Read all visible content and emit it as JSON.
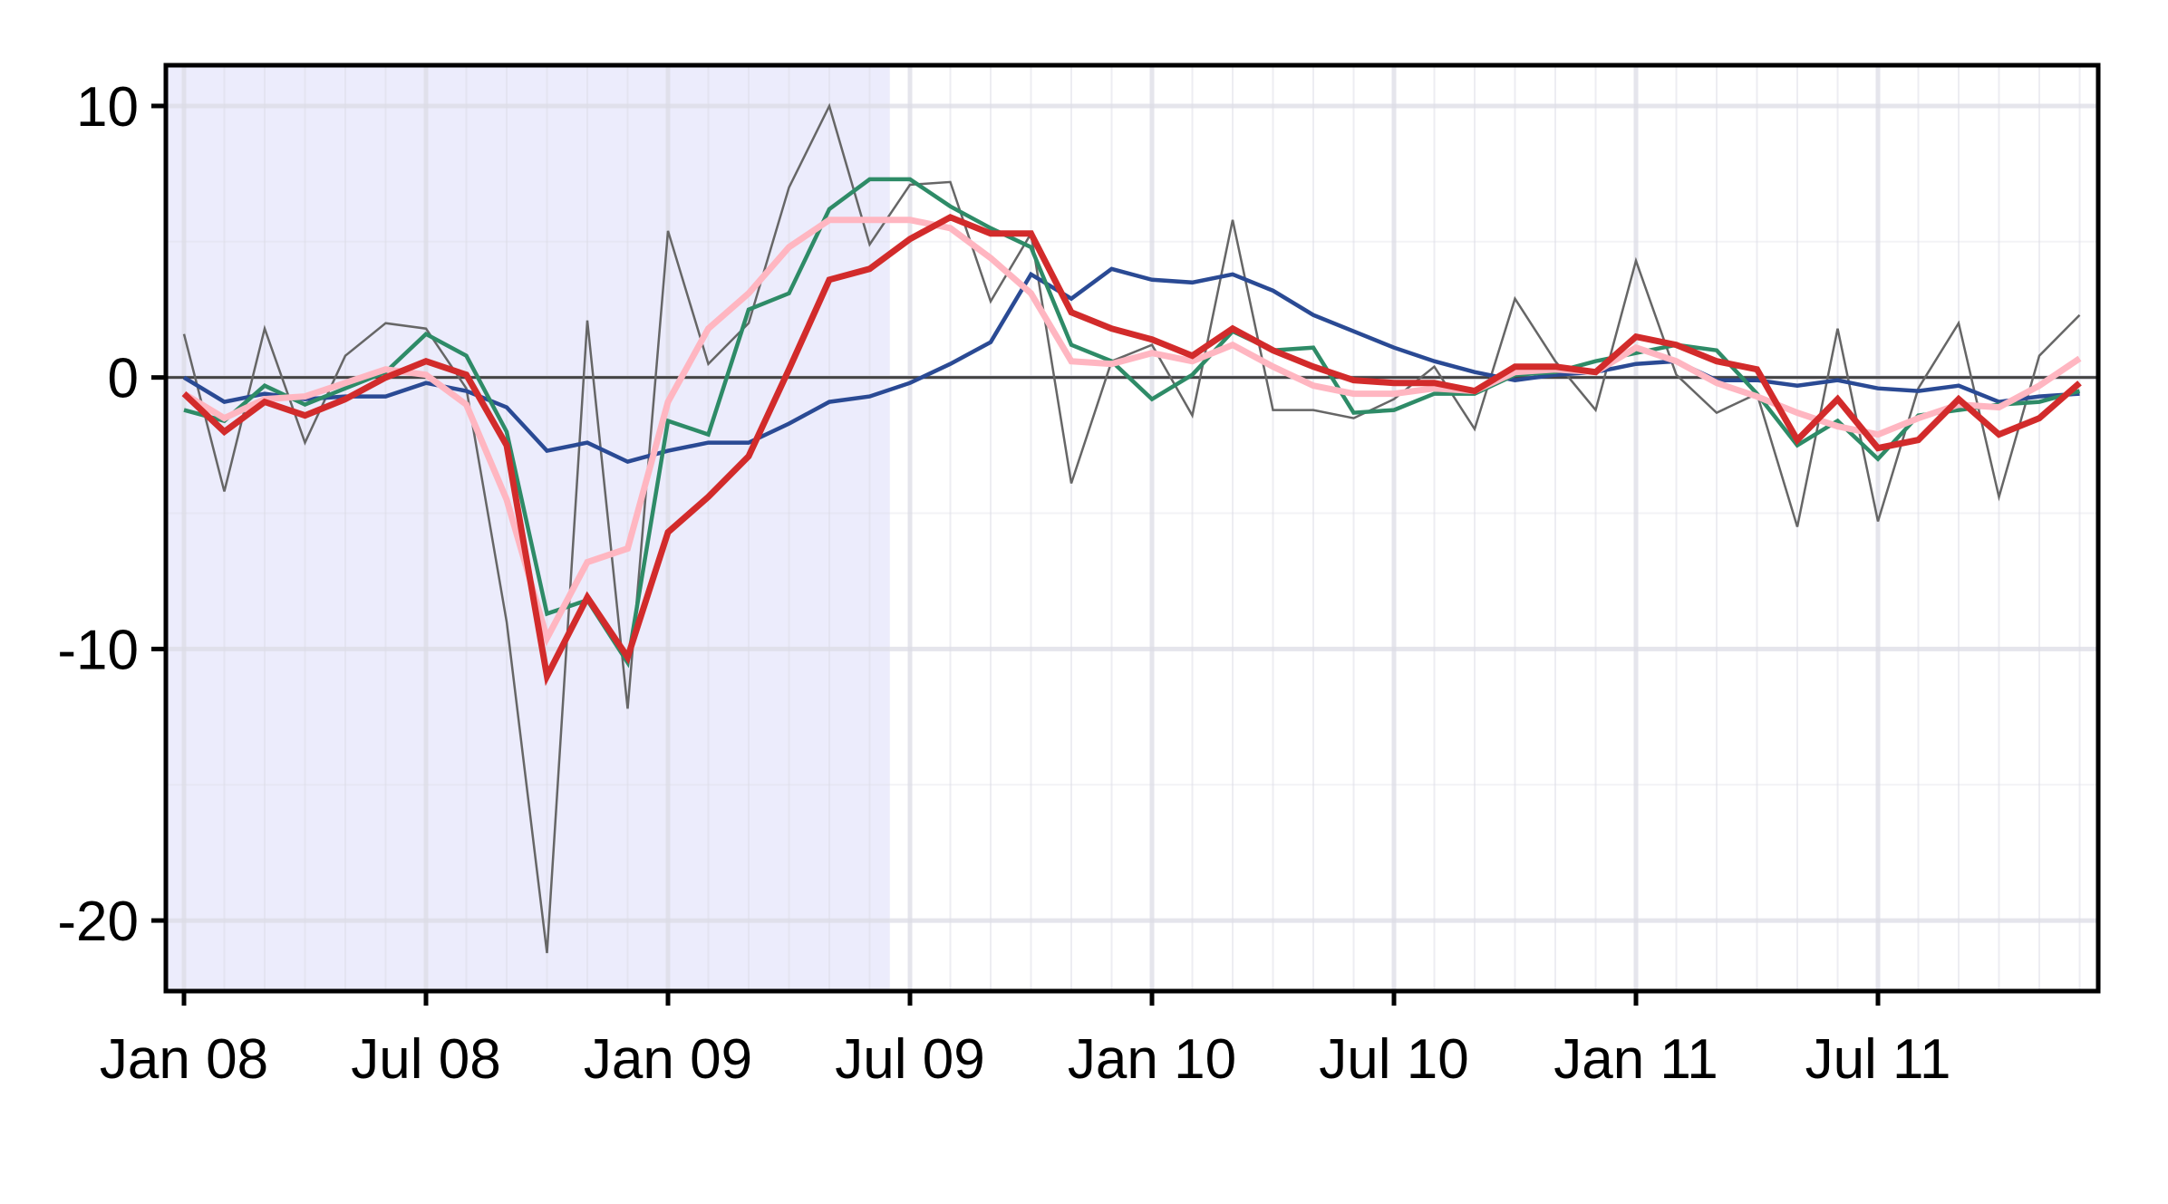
{
  "chart_data": {
    "type": "line",
    "title": "",
    "xlabel": "",
    "ylabel": "",
    "x_ticks": [
      "Jan 08",
      "Jul 08",
      "Jan 09",
      "Jul 09",
      "Jan 10",
      "Jul 10",
      "Jan 11",
      "Jul 11"
    ],
    "y_ticks": [
      "10",
      "0",
      "-10",
      "-20"
    ],
    "y_tick_values": [
      10,
      0,
      -10,
      -20
    ],
    "ylim": [
      -22.6,
      11.5
    ],
    "x_range": [
      "2008-01",
      "2011-12"
    ],
    "x": [
      "2008-01",
      "2008-02",
      "2008-03",
      "2008-04",
      "2008-05",
      "2008-06",
      "2008-07",
      "2008-08",
      "2008-09",
      "2008-10",
      "2008-11",
      "2008-12",
      "2009-01",
      "2009-02",
      "2009-03",
      "2009-04",
      "2009-05",
      "2009-06",
      "2009-07",
      "2009-08",
      "2009-09",
      "2009-10",
      "2009-11",
      "2009-12",
      "2010-01",
      "2010-02",
      "2010-03",
      "2010-04",
      "2010-05",
      "2010-06",
      "2010-07",
      "2010-08",
      "2010-09",
      "2010-10",
      "2010-11",
      "2010-12",
      "2011-01",
      "2011-02",
      "2011-03",
      "2011-04",
      "2011-05",
      "2011-06",
      "2011-07",
      "2011-08",
      "2011-09",
      "2011-10",
      "2011-11",
      "2011-12"
    ],
    "shaded_region": {
      "from": "2008-01",
      "to": "2009-06",
      "color": "#ececfc"
    },
    "zero_line": true,
    "grid": true,
    "series": [
      {
        "color": "#666666",
        "width": 2.5,
        "values": [
          1.6,
          -4.2,
          1.8,
          -2.4,
          0.8,
          2.0,
          1.8,
          -0.4,
          -9.0,
          -21.2,
          2.1,
          -12.2,
          5.4,
          0.5,
          2.0,
          7.0,
          10.0,
          4.9,
          7.1,
          7.2,
          2.8,
          5.3,
          -3.9,
          0.6,
          1.2,
          -1.4,
          5.8,
          -1.2,
          -1.2,
          -1.5,
          -0.8,
          0.4,
          -1.9,
          2.9,
          0.6,
          -1.2,
          4.3,
          0.1,
          -1.3,
          -0.6,
          -5.5,
          1.8,
          -5.3,
          -0.4,
          2.0,
          -4.4,
          0.8,
          2.3
        ]
      },
      {
        "color": "#2a4a94",
        "width": 4.5,
        "values": [
          0.0,
          -0.9,
          -0.6,
          -0.8,
          -0.7,
          -0.7,
          -0.2,
          -0.5,
          -1.1,
          -2.7,
          -2.4,
          -3.1,
          -2.7,
          -2.4,
          -2.4,
          -1.7,
          -0.9,
          -0.7,
          -0.2,
          0.5,
          1.3,
          3.8,
          2.9,
          4.0,
          3.6,
          3.5,
          3.8,
          3.2,
          2.3,
          1.7,
          1.1,
          0.6,
          0.2,
          -0.1,
          0.1,
          0.2,
          0.5,
          0.6,
          -0.1,
          -0.1,
          -0.3,
          -0.1,
          -0.4,
          -0.5,
          -0.3,
          -0.9,
          -0.7,
          -0.6
        ]
      },
      {
        "color": "#2e8b67",
        "width": 4.5,
        "values": [
          -1.2,
          -1.6,
          -0.3,
          -1.0,
          -0.4,
          0.2,
          1.6,
          0.8,
          -2.0,
          -8.7,
          -8.2,
          -10.5,
          -1.6,
          -2.1,
          2.5,
          3.1,
          6.2,
          7.3,
          7.3,
          6.3,
          5.5,
          4.8,
          1.2,
          0.6,
          -0.8,
          0.1,
          1.7,
          1.0,
          1.1,
          -1.3,
          -1.2,
          -0.6,
          -0.6,
          0.1,
          0.2,
          0.6,
          0.9,
          1.2,
          1.0,
          -0.6,
          -2.5,
          -1.6,
          -3.0,
          -1.4,
          -1.2,
          -1.0,
          -0.9,
          -0.5
        ]
      },
      {
        "color": "#ffb6c1",
        "width": 7,
        "values": [
          -0.6,
          -1.5,
          -0.8,
          -0.7,
          -0.2,
          0.3,
          0.1,
          -1.0,
          -4.5,
          -9.6,
          -6.8,
          -6.3,
          -0.9,
          1.8,
          3.1,
          4.8,
          5.8,
          5.8,
          5.8,
          5.5,
          4.4,
          3.1,
          0.6,
          0.5,
          0.9,
          0.6,
          1.2,
          0.4,
          -0.3,
          -0.6,
          -0.6,
          -0.4,
          -0.5,
          0.2,
          0.3,
          0.2,
          1.1,
          0.6,
          -0.2,
          -0.7,
          -1.3,
          -1.8,
          -2.1,
          -1.5,
          -1.0,
          -1.1,
          -0.3,
          0.7
        ]
      },
      {
        "color": "#d22b2b",
        "width": 7,
        "values": [
          -0.6,
          -2.0,
          -0.9,
          -1.4,
          -0.8,
          0.0,
          0.6,
          0.1,
          -2.5,
          -11.0,
          -8.1,
          -10.3,
          -5.7,
          -4.4,
          -2.9,
          0.3,
          3.6,
          4.0,
          5.1,
          5.9,
          5.3,
          5.3,
          2.4,
          1.8,
          1.4,
          0.8,
          1.8,
          1.0,
          0.4,
          -0.1,
          -0.2,
          -0.2,
          -0.5,
          0.4,
          0.4,
          0.2,
          1.5,
          1.2,
          0.6,
          0.3,
          -2.3,
          -0.8,
          -2.6,
          -2.3,
          -0.8,
          -2.1,
          -1.5,
          -0.2
        ]
      }
    ]
  }
}
